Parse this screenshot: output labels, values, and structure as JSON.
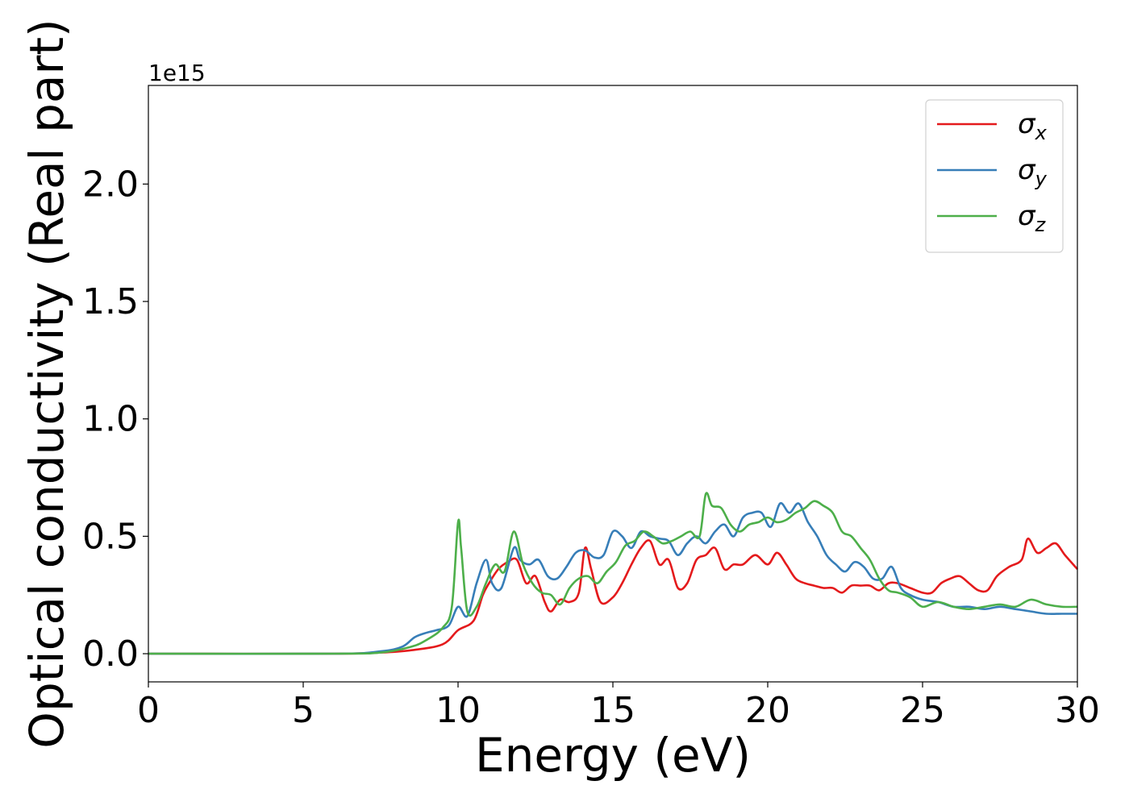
{
  "chart_data": {
    "type": "line",
    "title": "",
    "xlabel": "Energy (eV)",
    "ylabel": "Optical conductivity (Real part)",
    "y_offset_text": "1e15",
    "xlim": [
      0,
      30
    ],
    "ylim": [
      -0.12,
      2.42
    ],
    "xticks": [
      0,
      5,
      10,
      15,
      20,
      25,
      30
    ],
    "xtick_labels": [
      "0",
      "5",
      "10",
      "15",
      "20",
      "25",
      "30"
    ],
    "yticks": [
      0.0,
      0.5,
      1.0,
      1.5,
      2.0
    ],
    "ytick_labels": [
      "0.0",
      "0.5",
      "1.0",
      "1.5",
      "2.0"
    ],
    "grid": false,
    "legend_position": "upper-right",
    "series": [
      {
        "name": "σx",
        "legend_base": "σ",
        "legend_sub": "x",
        "color": "#e41a1c",
        "x": [
          0,
          6,
          7.5,
          8.5,
          9.5,
          10.0,
          10.5,
          10.8,
          11.0,
          11.3,
          11.6,
          11.9,
          12.2,
          12.5,
          12.8,
          13.0,
          13.3,
          13.6,
          13.9,
          14.1,
          14.3,
          14.6,
          15.0,
          15.3,
          15.6,
          15.9,
          16.2,
          16.5,
          16.8,
          17.1,
          17.4,
          17.7,
          18.0,
          18.3,
          18.6,
          18.9,
          19.2,
          19.6,
          20.0,
          20.3,
          20.6,
          20.9,
          21.2,
          21.5,
          21.8,
          22.1,
          22.4,
          22.7,
          23.0,
          23.3,
          23.6,
          23.9,
          24.2,
          24.6,
          25.0,
          25.3,
          25.6,
          25.9,
          26.2,
          26.5,
          26.8,
          27.1,
          27.4,
          27.8,
          28.2,
          28.4,
          28.7,
          29.0,
          29.3,
          29.6,
          30.0
        ],
        "y": [
          0.0,
          0.0,
          0.005,
          0.015,
          0.04,
          0.1,
          0.14,
          0.25,
          0.3,
          0.36,
          0.39,
          0.4,
          0.3,
          0.33,
          0.22,
          0.18,
          0.23,
          0.22,
          0.26,
          0.45,
          0.36,
          0.22,
          0.24,
          0.3,
          0.38,
          0.45,
          0.48,
          0.38,
          0.4,
          0.28,
          0.3,
          0.4,
          0.42,
          0.45,
          0.36,
          0.38,
          0.38,
          0.42,
          0.38,
          0.43,
          0.38,
          0.32,
          0.3,
          0.29,
          0.28,
          0.28,
          0.26,
          0.29,
          0.29,
          0.29,
          0.27,
          0.3,
          0.3,
          0.28,
          0.26,
          0.26,
          0.3,
          0.32,
          0.33,
          0.3,
          0.27,
          0.27,
          0.33,
          0.37,
          0.4,
          0.49,
          0.43,
          0.45,
          0.47,
          0.42,
          0.36
        ]
      },
      {
        "name": "σy",
        "legend_base": "σ",
        "legend_sub": "y",
        "color": "#377eb8",
        "x": [
          0,
          6,
          7.5,
          8.2,
          8.6,
          9.0,
          9.3,
          9.7,
          10.0,
          10.3,
          10.6,
          10.9,
          11.1,
          11.4,
          11.8,
          12.0,
          12.3,
          12.6,
          12.9,
          13.2,
          13.5,
          13.8,
          14.1,
          14.4,
          14.7,
          15.0,
          15.3,
          15.6,
          15.9,
          16.2,
          16.5,
          16.8,
          17.1,
          17.4,
          17.7,
          18.0,
          18.3,
          18.6,
          18.9,
          19.2,
          19.5,
          19.8,
          20.1,
          20.4,
          20.7,
          21.0,
          21.3,
          21.6,
          21.9,
          22.2,
          22.5,
          22.8,
          23.1,
          23.4,
          23.7,
          24.0,
          24.3,
          24.6,
          25.0,
          25.5,
          26.0,
          26.5,
          27.0,
          27.5,
          28.0,
          28.5,
          29.0,
          29.5,
          30.0
        ],
        "y": [
          0.0,
          0.0,
          0.01,
          0.03,
          0.07,
          0.09,
          0.1,
          0.12,
          0.2,
          0.16,
          0.3,
          0.4,
          0.3,
          0.28,
          0.45,
          0.4,
          0.38,
          0.4,
          0.33,
          0.32,
          0.37,
          0.43,
          0.44,
          0.41,
          0.42,
          0.52,
          0.5,
          0.45,
          0.52,
          0.5,
          0.49,
          0.48,
          0.42,
          0.47,
          0.5,
          0.47,
          0.52,
          0.55,
          0.5,
          0.58,
          0.6,
          0.6,
          0.54,
          0.64,
          0.6,
          0.64,
          0.56,
          0.5,
          0.42,
          0.38,
          0.35,
          0.39,
          0.37,
          0.32,
          0.32,
          0.37,
          0.28,
          0.25,
          0.23,
          0.22,
          0.2,
          0.2,
          0.19,
          0.2,
          0.19,
          0.18,
          0.17,
          0.17,
          0.17
        ]
      },
      {
        "name": "σz",
        "legend_base": "σ",
        "legend_sub": "z",
        "color": "#4daf4a",
        "x": [
          0,
          6,
          7.5,
          8.5,
          9.0,
          9.5,
          9.8,
          10.0,
          10.1,
          10.3,
          10.6,
          10.9,
          11.2,
          11.5,
          11.8,
          12.1,
          12.4,
          12.7,
          13.0,
          13.3,
          13.6,
          13.9,
          14.2,
          14.5,
          14.8,
          15.1,
          15.4,
          15.7,
          16.0,
          16.3,
          16.6,
          16.9,
          17.2,
          17.5,
          17.8,
          18.0,
          18.2,
          18.5,
          18.8,
          19.1,
          19.4,
          19.7,
          20.0,
          20.3,
          20.6,
          20.9,
          21.2,
          21.5,
          21.8,
          22.1,
          22.4,
          22.7,
          23.0,
          23.3,
          23.6,
          23.9,
          24.2,
          24.6,
          25.0,
          25.5,
          26.0,
          26.5,
          27.0,
          27.5,
          28.0,
          28.5,
          29.0,
          29.5,
          30.0
        ],
        "y": [
          0.0,
          0.0,
          0.005,
          0.03,
          0.06,
          0.11,
          0.2,
          0.56,
          0.45,
          0.18,
          0.2,
          0.3,
          0.38,
          0.35,
          0.52,
          0.38,
          0.3,
          0.26,
          0.25,
          0.21,
          0.28,
          0.32,
          0.33,
          0.3,
          0.35,
          0.39,
          0.46,
          0.48,
          0.52,
          0.5,
          0.47,
          0.48,
          0.5,
          0.52,
          0.5,
          0.68,
          0.63,
          0.62,
          0.55,
          0.52,
          0.55,
          0.56,
          0.58,
          0.56,
          0.57,
          0.6,
          0.62,
          0.65,
          0.63,
          0.6,
          0.52,
          0.5,
          0.45,
          0.4,
          0.32,
          0.27,
          0.26,
          0.24,
          0.2,
          0.22,
          0.2,
          0.19,
          0.2,
          0.21,
          0.2,
          0.23,
          0.21,
          0.2,
          0.2
        ]
      }
    ]
  }
}
